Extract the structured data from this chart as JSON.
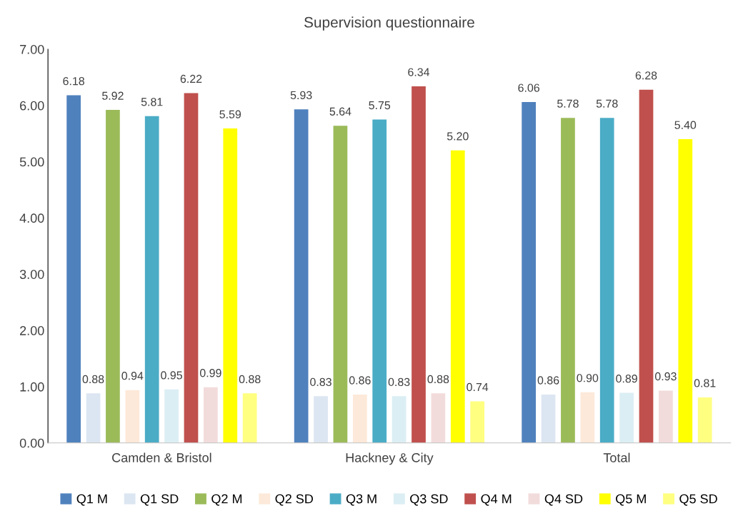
{
  "chart_data": {
    "type": "bar",
    "title": "Supervision questionnaire",
    "categories": [
      "Camden & Bristol",
      "Hackney & City",
      "Total"
    ],
    "series": [
      {
        "name": "Q1 M",
        "color": "#4f81bd",
        "values": [
          6.18,
          5.93,
          6.06
        ],
        "value_labels": [
          "6.18",
          "5.93",
          "6.06"
        ]
      },
      {
        "name": "Q1 SD",
        "color": "#dce6f2",
        "values": [
          0.88,
          0.83,
          0.86
        ],
        "value_labels": [
          "0.88",
          "0.83",
          "0.86"
        ]
      },
      {
        "name": "Q2 M",
        "color": "#9bbb59",
        "values": [
          5.92,
          5.64,
          5.78
        ],
        "value_labels": [
          "5.92",
          "5.64",
          "5.78"
        ]
      },
      {
        "name": "Q2 SD",
        "color": "#fde9d9",
        "values": [
          0.94,
          0.86,
          0.9
        ],
        "value_labels": [
          "0.94",
          "0.86",
          "0.90"
        ]
      },
      {
        "name": "Q3 M",
        "color": "#4bacc6",
        "values": [
          5.81,
          5.75,
          5.78
        ],
        "value_labels": [
          "5.81",
          "5.75",
          "5.78"
        ]
      },
      {
        "name": "Q3 SD",
        "color": "#dbeef4",
        "values": [
          0.95,
          0.83,
          0.89
        ],
        "value_labels": [
          "0.95",
          "0.83",
          "0.89"
        ]
      },
      {
        "name": "Q4 M",
        "color": "#c0504d",
        "values": [
          6.22,
          6.34,
          6.28
        ],
        "value_labels": [
          "6.22",
          "6.34",
          "6.28"
        ]
      },
      {
        "name": "Q4 SD",
        "color": "#f2dcdb",
        "values": [
          0.99,
          0.88,
          0.93
        ],
        "value_labels": [
          "0.99",
          "0.88",
          "0.93"
        ]
      },
      {
        "name": "Q5 M",
        "color": "#ffff00",
        "values": [
          5.59,
          5.2,
          5.4
        ],
        "value_labels": [
          "5.59",
          "5.20",
          "5.40"
        ]
      },
      {
        "name": "Q5 SD",
        "color": "#ffff80",
        "values": [
          0.88,
          0.74,
          0.81
        ],
        "value_labels": [
          "0.88",
          "0.74",
          "0.81"
        ]
      }
    ],
    "ylim": [
      0,
      7
    ],
    "yticks": [
      {
        "value": 0,
        "label": "0.00"
      },
      {
        "value": 1,
        "label": "1.00"
      },
      {
        "value": 2,
        "label": "2.00"
      },
      {
        "value": 3,
        "label": "3.00"
      },
      {
        "value": 4,
        "label": "4.00"
      },
      {
        "value": 5,
        "label": "5.00"
      },
      {
        "value": 6,
        "label": "6.00"
      },
      {
        "value": 7,
        "label": "7.00"
      }
    ],
    "grid": false,
    "legend": "bottom"
  }
}
